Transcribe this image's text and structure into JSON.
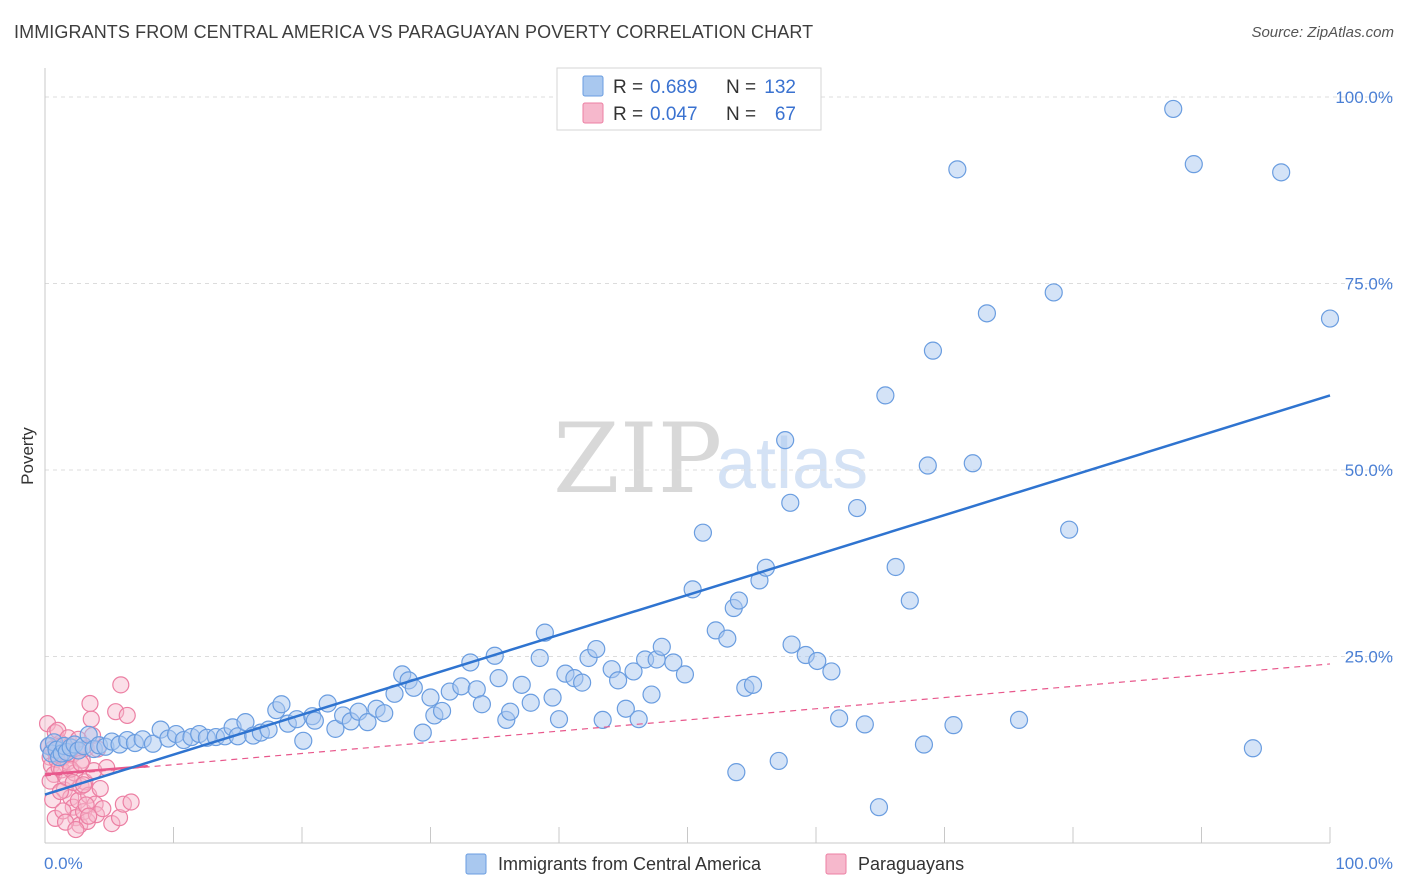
{
  "title": "IMMIGRANTS FROM CENTRAL AMERICA VS PARAGUAYAN POVERTY CORRELATION CHART",
  "source": "Source: ZipAtlas.com",
  "watermark": {
    "zip": "ZIP",
    "atlas": "atlas"
  },
  "legend": {
    "r_label": "R =",
    "n_label": "N =",
    "rows": [
      {
        "r": "0.689",
        "n": "132"
      },
      {
        "r": "0.047",
        "n": "67"
      }
    ]
  },
  "bottom_legend": [
    "Immigrants from Central America",
    "Paraguayans"
  ],
  "colors": {
    "blue_fill": "#a9c8ef",
    "blue_stroke": "#6a9de0",
    "blue_line": "#2f74d0",
    "pink_fill": "#f6b8cc",
    "pink_stroke": "#ec7fa3",
    "pink_line": "#e8588c",
    "grid": "#dcdcdc",
    "tick_text": "#4a7fd4"
  },
  "chart_data": {
    "type": "scatter",
    "title": "IMMIGRANTS FROM CENTRAL AMERICA VS PARAGUAYAN POVERTY CORRELATION CHART",
    "xlabel": "",
    "ylabel": "Poverty",
    "xlim": [
      0,
      100
    ],
    "ylim": [
      0,
      100
    ],
    "x_tick_labels": [
      "0.0%",
      "100.0%"
    ],
    "y_ticks": [
      25,
      50,
      75,
      100
    ],
    "y_tick_labels": [
      "25.0%",
      "50.0%",
      "75.0%",
      "100.0%"
    ],
    "series": [
      {
        "name": "Immigrants from Central America",
        "r": 0.689,
        "n": 132,
        "trend": {
          "x": [
            0,
            100
          ],
          "y": [
            6.5,
            60
          ]
        },
        "points": [
          [
            0.3,
            13
          ],
          [
            0.5,
            12
          ],
          [
            0.7,
            13.5
          ],
          [
            0.9,
            12.5
          ],
          [
            1.1,
            11.5
          ],
          [
            1.3,
            12
          ],
          [
            1.5,
            13
          ],
          [
            1.7,
            12.2
          ],
          [
            2,
            12.8
          ],
          [
            2.3,
            13.2
          ],
          [
            2.6,
            12.4
          ],
          [
            3,
            13
          ],
          [
            3.4,
            14.5
          ],
          [
            3.8,
            12.6
          ],
          [
            4.2,
            13.1
          ],
          [
            4.7,
            12.9
          ],
          [
            5.2,
            13.6
          ],
          [
            5.8,
            13.2
          ],
          [
            6.4,
            13.8
          ],
          [
            7,
            13.4
          ],
          [
            7.6,
            13.9
          ],
          [
            8.4,
            13.3
          ],
          [
            9,
            15.2
          ],
          [
            9.6,
            14
          ],
          [
            10.2,
            14.6
          ],
          [
            10.8,
            13.8
          ],
          [
            11.4,
            14.2
          ],
          [
            12,
            14.6
          ],
          [
            12.6,
            14.1
          ],
          [
            13.3,
            14.2
          ],
          [
            14,
            14.3
          ],
          [
            14.6,
            15.5
          ],
          [
            15,
            14.3
          ],
          [
            15.6,
            16.2
          ],
          [
            16.2,
            14.4
          ],
          [
            16.8,
            14.8
          ],
          [
            17.4,
            15.2
          ],
          [
            18,
            17.8
          ],
          [
            18.4,
            18.6
          ],
          [
            18.9,
            16
          ],
          [
            19.6,
            16.6
          ],
          [
            20.1,
            13.7
          ],
          [
            20.8,
            17
          ],
          [
            21,
            16.4
          ],
          [
            22,
            18.7
          ],
          [
            22.6,
            15.3
          ],
          [
            23.2,
            17.1
          ],
          [
            23.8,
            16.3
          ],
          [
            24.4,
            17.6
          ],
          [
            25.1,
            16.2
          ],
          [
            25.8,
            18
          ],
          [
            26.4,
            17.4
          ],
          [
            27.2,
            20
          ],
          [
            27.8,
            22.6
          ],
          [
            28.3,
            21.8
          ],
          [
            28.7,
            20.8
          ],
          [
            29.4,
            14.8
          ],
          [
            30,
            19.5
          ],
          [
            30.3,
            17.1
          ],
          [
            30.9,
            17.7
          ],
          [
            31.5,
            20.3
          ],
          [
            32.4,
            21
          ],
          [
            33.1,
            24.2
          ],
          [
            33.6,
            20.6
          ],
          [
            34,
            18.6
          ],
          [
            35,
            25.1
          ],
          [
            35.3,
            22.1
          ],
          [
            35.9,
            16.5
          ],
          [
            36.2,
            17.6
          ],
          [
            37.1,
            21.2
          ],
          [
            37.8,
            18.8
          ],
          [
            38.5,
            24.8
          ],
          [
            38.9,
            28.2
          ],
          [
            39.5,
            19.5
          ],
          [
            40,
            16.6
          ],
          [
            40.5,
            22.7
          ],
          [
            41.2,
            22.1
          ],
          [
            41.8,
            21.5
          ],
          [
            42.3,
            24.8
          ],
          [
            42.9,
            26
          ],
          [
            43.4,
            16.5
          ],
          [
            44.1,
            23.3
          ],
          [
            44.6,
            21.8
          ],
          [
            45.2,
            18
          ],
          [
            45.8,
            23
          ],
          [
            46.2,
            16.6
          ],
          [
            46.7,
            24.6
          ],
          [
            47.2,
            19.9
          ],
          [
            47.6,
            24.6
          ],
          [
            48,
            26.3
          ],
          [
            48.9,
            24.2
          ],
          [
            49.8,
            22.6
          ],
          [
            50.4,
            34
          ],
          [
            51.2,
            41.6
          ],
          [
            52.2,
            28.5
          ],
          [
            53.1,
            27.4
          ],
          [
            53.6,
            31.5
          ],
          [
            54,
            32.5
          ],
          [
            54.5,
            20.8
          ],
          [
            55.1,
            21.2
          ],
          [
            55.6,
            35.2
          ],
          [
            56.1,
            36.9
          ],
          [
            57.1,
            11
          ],
          [
            57.6,
            54
          ],
          [
            58,
            45.6
          ],
          [
            58.1,
            26.6
          ],
          [
            59.2,
            25.2
          ],
          [
            60.1,
            24.4
          ],
          [
            61.2,
            23
          ],
          [
            61.8,
            16.7
          ],
          [
            63.2,
            44.9
          ],
          [
            63.8,
            15.9
          ],
          [
            64.9,
            4.8
          ],
          [
            65.4,
            60
          ],
          [
            66.2,
            37
          ],
          [
            67.3,
            32.5
          ],
          [
            68.4,
            13.2
          ],
          [
            68.7,
            50.6
          ],
          [
            69.1,
            66
          ],
          [
            70.7,
            15.8
          ],
          [
            71,
            90.3
          ],
          [
            72.2,
            50.9
          ],
          [
            73.3,
            71
          ],
          [
            75.8,
            16.5
          ],
          [
            78.5,
            73.8
          ],
          [
            79.7,
            42
          ],
          [
            87.8,
            98.4
          ],
          [
            89.4,
            91
          ],
          [
            94,
            12.7
          ],
          [
            96.2,
            89.9
          ],
          [
            100,
            70.3
          ],
          [
            53.8,
            9.5
          ]
        ]
      },
      {
        "name": "Paraguayans",
        "r": 0.047,
        "n": 67,
        "trend": {
          "x": [
            0,
            8
          ],
          "y": [
            9.2,
            10.3
          ]
        },
        "trend_dashed": {
          "x": [
            0,
            100
          ],
          "y": [
            9,
            24
          ]
        },
        "points": [
          [
            0.2,
            16
          ],
          [
            0.3,
            13
          ],
          [
            0.4,
            11.5
          ],
          [
            0.5,
            10.4
          ],
          [
            0.6,
            12.6
          ],
          [
            0.7,
            9.2
          ],
          [
            0.8,
            14.8
          ],
          [
            0.9,
            11.2
          ],
          [
            1,
            12.8
          ],
          [
            1.1,
            10.1
          ],
          [
            1.2,
            13.4
          ],
          [
            1.3,
            9.8
          ],
          [
            1.4,
            11.5
          ],
          [
            1.5,
            7.1
          ],
          [
            1.6,
            12.3
          ],
          [
            1.7,
            8.7
          ],
          [
            1.8,
            10.9
          ],
          [
            1.9,
            13
          ],
          [
            2,
            6.1
          ],
          [
            2.1,
            11.8
          ],
          [
            2.2,
            4.8
          ],
          [
            2.3,
            9.4
          ],
          [
            2.4,
            3.4
          ],
          [
            2.5,
            12.4
          ],
          [
            2.6,
            5.7
          ],
          [
            2.7,
            2.4
          ],
          [
            2.8,
            7.6
          ],
          [
            2.9,
            11.1
          ],
          [
            3,
            4.2
          ],
          [
            3.1,
            8.2
          ],
          [
            3.2,
            12.7
          ],
          [
            3.3,
            2.9
          ],
          [
            3.4,
            6.4
          ],
          [
            3.5,
            18.7
          ],
          [
            3.6,
            16.6
          ],
          [
            3.7,
            14.4
          ],
          [
            3.8,
            9.7
          ],
          [
            3.9,
            5.2
          ],
          [
            4,
            3.8
          ],
          [
            4.1,
            12.6
          ],
          [
            4.3,
            7.3
          ],
          [
            4.5,
            4.6
          ],
          [
            4.8,
            10.1
          ],
          [
            5.2,
            2.6
          ],
          [
            5.5,
            17.6
          ],
          [
            5.8,
            3.4
          ],
          [
            6.1,
            5.2
          ],
          [
            6.4,
            17.1
          ],
          [
            6.7,
            5.5
          ],
          [
            5.9,
            21.2
          ],
          [
            0.4,
            8.3
          ],
          [
            0.6,
            5.8
          ],
          [
            0.8,
            3.3
          ],
          [
            1,
            15.1
          ],
          [
            1.2,
            6.9
          ],
          [
            1.4,
            4.3
          ],
          [
            1.6,
            2.8
          ],
          [
            1.8,
            14.1
          ],
          [
            2,
            9.9
          ],
          [
            2.2,
            8.1
          ],
          [
            2.4,
            1.8
          ],
          [
            2.6,
            13.9
          ],
          [
            2.8,
            10.7
          ],
          [
            3,
            7.8
          ],
          [
            3.2,
            5.1
          ],
          [
            3.4,
            3.6
          ],
          [
            0.9,
            11.9
          ]
        ]
      }
    ]
  }
}
